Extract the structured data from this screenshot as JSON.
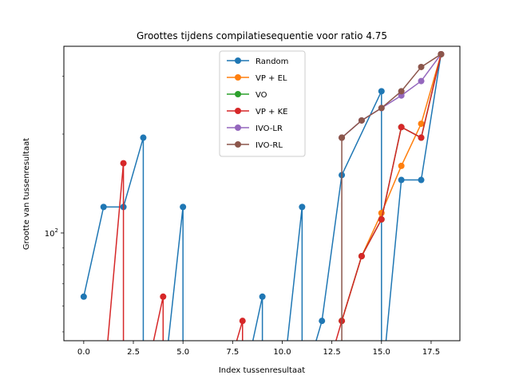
{
  "chart_data": {
    "type": "line",
    "title": "Groottes tijdens compilatiesequentie voor ratio 4.75",
    "xlabel": "Index tussenresultaat",
    "ylabel": "Grootte van tussenresultaat",
    "xlim": [
      -1.0,
      18.95
    ],
    "ylim": [
      47,
      370
    ],
    "yscale": "log",
    "xticks": [
      0.0,
      2.5,
      5.0,
      7.5,
      10.0,
      12.5,
      15.0,
      17.5
    ],
    "xtick_labels": [
      "0.0",
      "2.5",
      "5.0",
      "7.5",
      "10.0",
      "12.5",
      "15.0",
      "17.5"
    ],
    "yticks": [
      100
    ],
    "ytick_labels": [
      "10^2"
    ],
    "legend_position": "top-center",
    "series": [
      {
        "name": "Random",
        "color": "#1f77b4",
        "points": [
          [
            0,
            64
          ],
          [
            1,
            120
          ],
          [
            2,
            120
          ],
          [
            3,
            195
          ],
          [
            3,
            0
          ],
          [
            4,
            0
          ],
          [
            5,
            120
          ],
          [
            5,
            0
          ],
          [
            6,
            0
          ],
          [
            7,
            0
          ],
          [
            8,
            0
          ],
          [
            9,
            64
          ],
          [
            9,
            0
          ],
          [
            10,
            0
          ],
          [
            11,
            120
          ],
          [
            11,
            0
          ],
          [
            12,
            54
          ],
          [
            13,
            150
          ],
          [
            15,
            270
          ],
          [
            15,
            0
          ],
          [
            16,
            145
          ],
          [
            17,
            145
          ],
          [
            18,
            350
          ]
        ]
      },
      {
        "name": "VP + EL",
        "color": "#ff7f0e",
        "points": [
          [
            13,
            54
          ],
          [
            14,
            85
          ],
          [
            15,
            115
          ],
          [
            16,
            160
          ],
          [
            17,
            215
          ],
          [
            18,
            350
          ]
        ]
      },
      {
        "name": "VO",
        "color": "#2ca02c",
        "points": [
          [
            13,
            54
          ],
          [
            14,
            85
          ],
          [
            15,
            110
          ],
          [
            16,
            210
          ],
          [
            17,
            195
          ],
          [
            18,
            350
          ]
        ]
      },
      {
        "name": "VP + KE",
        "color": "#d62728",
        "points": [
          [
            0,
            0
          ],
          [
            1,
            0
          ],
          [
            2,
            163
          ],
          [
            2,
            0
          ],
          [
            3,
            0
          ],
          [
            4,
            64
          ],
          [
            4,
            0
          ],
          [
            5,
            0
          ],
          [
            6,
            0
          ],
          [
            7,
            0
          ],
          [
            8,
            54
          ],
          [
            8,
            0
          ],
          [
            9,
            0
          ],
          [
            10,
            0
          ],
          [
            11,
            0
          ],
          [
            12,
            0
          ],
          [
            13,
            54
          ],
          [
            14,
            85
          ],
          [
            15,
            110
          ],
          [
            16,
            210
          ],
          [
            17,
            195
          ],
          [
            18,
            350
          ]
        ]
      },
      {
        "name": "IVO-LR",
        "color": "#9467bd",
        "points": [
          [
            13,
            195
          ],
          [
            14,
            220
          ],
          [
            15,
            240
          ],
          [
            16,
            262
          ],
          [
            17,
            290
          ],
          [
            18,
            350
          ]
        ]
      },
      {
        "name": "IVO-RL",
        "color": "#8c564b",
        "points": [
          [
            13,
            195
          ],
          [
            13,
            0
          ],
          [
            13,
            195
          ],
          [
            14,
            220
          ],
          [
            15,
            240
          ],
          [
            16,
            270
          ],
          [
            17,
            320
          ],
          [
            18,
            350
          ]
        ]
      }
    ]
  }
}
